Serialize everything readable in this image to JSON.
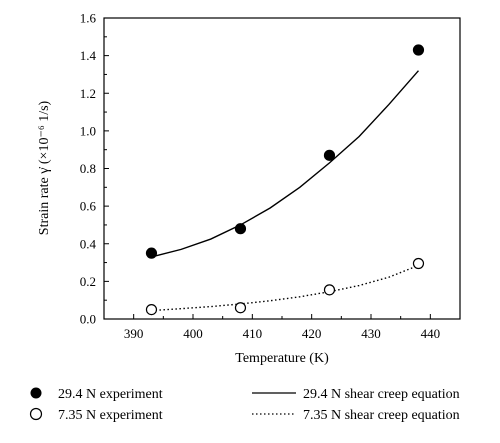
{
  "chart_data": {
    "type": "scatter",
    "title": "",
    "xlabel": "Temperature (K)",
    "ylabel": "Strain rate γ̇ (×10⁻⁶ 1/s)",
    "xlim": [
      385,
      445
    ],
    "ylim": [
      0.0,
      1.6
    ],
    "xticks": [
      "390",
      "400",
      "410",
      "420",
      "430",
      "440"
    ],
    "yticks": [
      "0.0",
      "0.2",
      "0.4",
      "0.6",
      "0.8",
      "1.0",
      "1.2",
      "1.4",
      "1.6"
    ],
    "grid": false,
    "legend_position": "bottom",
    "series": [
      {
        "name": "29.4 N experiment",
        "kind": "points",
        "marker": "filled-circle",
        "x": [
          393,
          408,
          423,
          438
        ],
        "y": [
          0.35,
          0.48,
          0.87,
          1.43
        ]
      },
      {
        "name": "7.35 N experiment",
        "kind": "points",
        "marker": "open-circle",
        "x": [
          393,
          408,
          423,
          438
        ],
        "y": [
          0.05,
          0.06,
          0.155,
          0.295
        ]
      },
      {
        "name": "29.4 N shear creep equation",
        "kind": "line",
        "style": "solid",
        "x": [
          393,
          398,
          403,
          408,
          413,
          418,
          423,
          428,
          433,
          438
        ],
        "y": [
          0.33,
          0.37,
          0.425,
          0.5,
          0.59,
          0.7,
          0.83,
          0.97,
          1.14,
          1.32
        ]
      },
      {
        "name": "7.35 N shear creep equation",
        "kind": "line",
        "style": "dotted",
        "x": [
          393,
          398,
          403,
          408,
          413,
          418,
          423,
          428,
          433,
          438
        ],
        "y": [
          0.045,
          0.055,
          0.066,
          0.08,
          0.097,
          0.118,
          0.145,
          0.178,
          0.222,
          0.285
        ]
      }
    ]
  }
}
